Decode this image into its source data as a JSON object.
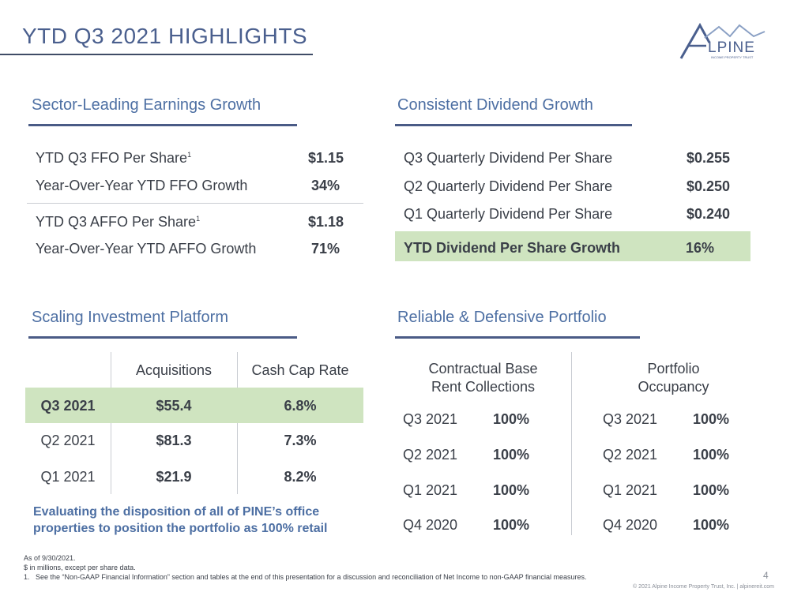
{
  "header": {
    "title": "YTD Q3 2021 HIGHLIGHTS",
    "logo_text": "LPINE",
    "logo_sub": "INCOME PROPERTY TRUST"
  },
  "earnings": {
    "title": "Sector-Leading Earnings Growth",
    "rows": [
      {
        "label": "YTD Q3 FFO Per Share",
        "sup": "1",
        "value": "$1.15"
      },
      {
        "label": "Year-Over-Year YTD FFO Growth",
        "sup": "",
        "value": "34%"
      },
      {
        "label": "YTD Q3 AFFO Per Share",
        "sup": "1",
        "value": "$1.18"
      },
      {
        "label": "Year-Over-Year YTD AFFO Growth",
        "sup": "",
        "value": "71%"
      }
    ]
  },
  "dividend": {
    "title": "Consistent Dividend Growth",
    "rows": [
      {
        "label": "Q3 Quarterly Dividend Per Share",
        "value": "$0.255"
      },
      {
        "label": "Q2 Quarterly Dividend Per Share",
        "value": "$0.250"
      },
      {
        "label": "Q1 Quarterly Dividend Per Share",
        "value": "$0.240"
      }
    ],
    "highlight": {
      "label": "YTD Dividend Per Share Growth",
      "value": "16%"
    }
  },
  "investment": {
    "title": "Scaling Investment Platform",
    "headers": [
      "Acquisitions",
      "Cash Cap Rate"
    ],
    "rows": [
      {
        "period": "Q3 2021",
        "acq": "$55.4",
        "rate": "6.8%"
      },
      {
        "period": "Q2 2021",
        "acq": "$81.3",
        "rate": "7.3%"
      },
      {
        "period": "Q1 2021",
        "acq": "$21.9",
        "rate": "8.2%"
      }
    ],
    "note": "Evaluating the disposition of all of PINE’s office properties to position the portfolio as 100% retail"
  },
  "portfolio": {
    "title": "Reliable & Defensive Portfolio",
    "col1_title": [
      "Contractual Base",
      "Rent Collections"
    ],
    "col2_title": [
      "Portfolio",
      "Occupancy"
    ],
    "col1": [
      {
        "period": "Q3 2021",
        "value": "100%"
      },
      {
        "period": "Q2 2021",
        "value": "100%"
      },
      {
        "period": "Q1 2021",
        "value": "100%"
      },
      {
        "period": "Q4 2020",
        "value": "100%"
      }
    ],
    "col2": [
      {
        "period": "Q3 2021",
        "value": "100%"
      },
      {
        "period": "Q2 2021",
        "value": "100%"
      },
      {
        "period": "Q1 2021",
        "value": "100%"
      },
      {
        "period": "Q4 2020",
        "value": "100%"
      }
    ]
  },
  "footnotes": [
    "As of 9/30/2021.",
    "$ in millions, except per share data.",
    "1.   See the “Non-GAAP Financial Information” section and tables at the end of this presentation for a discussion and reconciliation of Net Income to non-GAAP financial measures."
  ],
  "page_number": "4",
  "copyright": "© 2021 Alpine Income Property Trust, Inc.  |  alpinereit.com"
}
